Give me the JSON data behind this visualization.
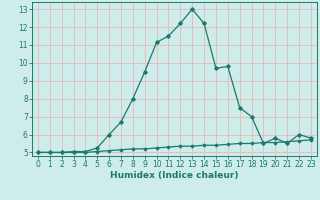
{
  "x": [
    0,
    1,
    2,
    3,
    4,
    5,
    6,
    7,
    8,
    9,
    10,
    11,
    12,
    13,
    14,
    15,
    16,
    17,
    18,
    19,
    20,
    21,
    22,
    23
  ],
  "y_main": [
    5.0,
    5.0,
    5.0,
    5.05,
    5.05,
    5.25,
    6.0,
    6.7,
    8.0,
    9.5,
    11.15,
    11.5,
    12.2,
    13.0,
    12.2,
    9.7,
    9.8,
    7.5,
    7.0,
    5.5,
    5.8,
    5.5,
    6.0,
    5.8
  ],
  "y_flat": [
    5.0,
    5.0,
    5.0,
    5.0,
    5.0,
    5.05,
    5.1,
    5.15,
    5.2,
    5.2,
    5.25,
    5.3,
    5.35,
    5.35,
    5.4,
    5.4,
    5.45,
    5.5,
    5.5,
    5.55,
    5.55,
    5.6,
    5.65,
    5.7
  ],
  "line_color": "#1a7a6e",
  "bg_color": "#ceecea",
  "grid_color": "#e8b8b8",
  "xlabel": "Humidex (Indice chaleur)",
  "ylim": [
    4.8,
    13.4
  ],
  "xlim": [
    -0.5,
    23.5
  ],
  "yticks": [
    5,
    6,
    7,
    8,
    9,
    10,
    11,
    12,
    13
  ],
  "xticks": [
    0,
    1,
    2,
    3,
    4,
    5,
    6,
    7,
    8,
    9,
    10,
    11,
    12,
    13,
    14,
    15,
    16,
    17,
    18,
    19,
    20,
    21,
    22,
    23
  ],
  "fontsize_label": 6.5,
  "fontsize_tick": 5.5
}
